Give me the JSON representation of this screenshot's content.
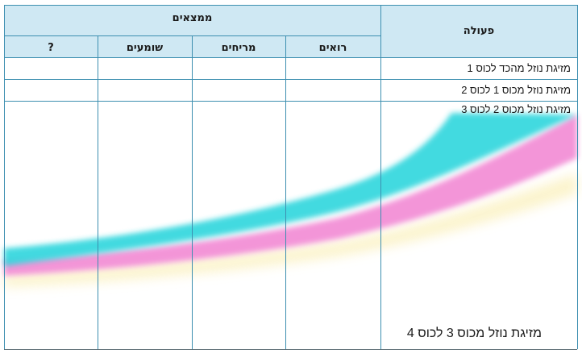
{
  "table": {
    "header_results": "ממצאים",
    "header_action": "פעולה",
    "sub_headers": [
      "?",
      "שומעים",
      "מריחים",
      "רואים"
    ],
    "rows": [
      "מזיגת נוזל מהכד לכוס 1",
      "מזיגת נוזל מכוס 1 לכוס 2",
      "מזיגת נוזל מכוס 2 לכוס 3",
      "מזיגת נוזל מכוס 3 לכוס 4"
    ]
  },
  "colors": {
    "header_fill": "#cfe8f3",
    "grid_line": "#3d8fb0",
    "cyan_band": "#2fd6dd",
    "magenta_band": "#f28ad4",
    "yellow_band": "#fbf2c4"
  }
}
